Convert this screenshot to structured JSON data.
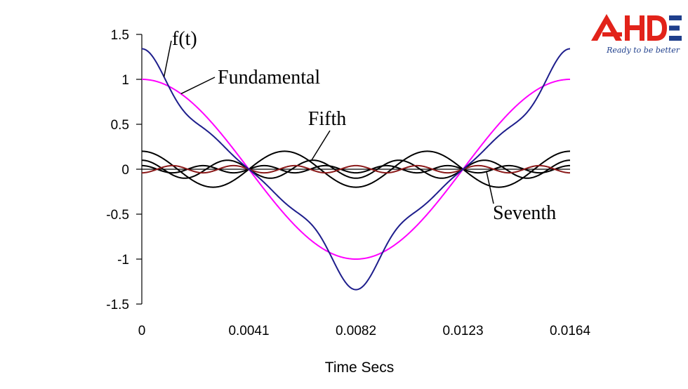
{
  "logo": {
    "tagline": "Ready to be better",
    "brand": "AHDE",
    "colors": {
      "red": "#e2231a",
      "blue": "#1f3f8c"
    }
  },
  "chart_data": {
    "type": "line",
    "xlabel": "Time Secs",
    "ylabel": "",
    "xlim": [
      0,
      0.0164
    ],
    "ylim": [
      -1.5,
      1.5
    ],
    "x_ticks": [
      0,
      0.0041,
      0.0082,
      0.0123,
      0.0164
    ],
    "x_tick_labels": [
      "0",
      "0.0041",
      "0.0082",
      "0.0123",
      "0.0164"
    ],
    "y_ticks": [
      1.5,
      1,
      0.5,
      0,
      -0.5,
      -1,
      -1.5
    ],
    "y_tick_labels": [
      "1.5",
      "1",
      "0.5",
      "0",
      "-0.5",
      "-1",
      "-1.5"
    ],
    "grid": false,
    "period": 0.0164,
    "harmonics": [
      {
        "order": 1,
        "amplitude": 1.0
      },
      {
        "order": 3,
        "amplitude": 0.2
      },
      {
        "order": 5,
        "amplitude": 0.1
      },
      {
        "order": 7,
        "amplitude": 0.04
      }
    ],
    "series": [
      {
        "name": "f(t)",
        "color": "#1e1e8c",
        "type": "sum"
      },
      {
        "name": "Fundamental",
        "color": "#ff00ff",
        "type": "harmonic",
        "order": 1,
        "amplitude": 1.0
      },
      {
        "name": "",
        "color": "#000000",
        "type": "harmonic",
        "order": 3,
        "amplitude": 0.2
      },
      {
        "name": "Fifth",
        "color": "#000000",
        "type": "harmonic",
        "order": 5,
        "amplitude": 0.1
      },
      {
        "name": "Seventh",
        "color": "#000000",
        "type": "harmonic",
        "order": 7,
        "amplitude": 0.04
      },
      {
        "name": "",
        "color": "#8b1a1a",
        "type": "harmonic",
        "order": 7,
        "amplitude": -0.04
      }
    ],
    "annotations": [
      {
        "text": "f(t)",
        "series": "f(t)"
      },
      {
        "text": "Fundamental",
        "series": "Fundamental"
      },
      {
        "text": "Fifth",
        "series": "Fifth"
      },
      {
        "text": "Seventh",
        "series": "Seventh"
      }
    ]
  }
}
